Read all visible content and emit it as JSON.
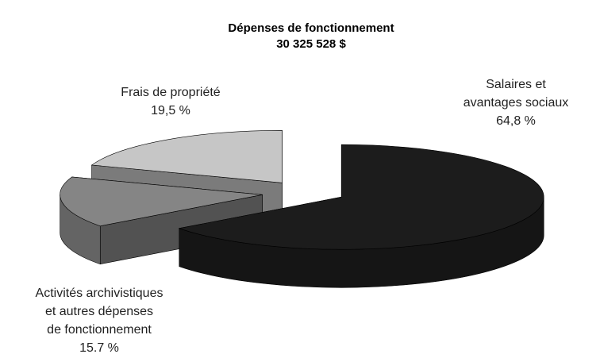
{
  "chart_data": {
    "type": "pie",
    "title": [
      "Dépenses de fonctionnement",
      "30 325 528 $"
    ],
    "categories": [
      [
        "Salaires et",
        "avantages sociaux"
      ],
      [
        "Activités archivistiques",
        "et autres dépenses",
        "de fonctionnement"
      ],
      [
        "Frais de propriété"
      ]
    ],
    "values": [
      64.8,
      15.7,
      19.5
    ],
    "value_labels": [
      "64,8 %",
      "15.7 %",
      "19,5 %"
    ],
    "colors": [
      "#1c1c1c",
      "#858585",
      "#c6c6c6"
    ]
  }
}
